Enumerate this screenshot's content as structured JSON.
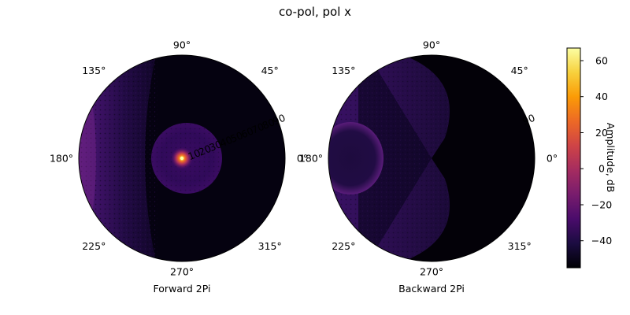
{
  "title": "co-pol, pol x",
  "chart_data": [
    {
      "type": "heatmap",
      "projection": "polar",
      "xlabel": "Forward 2Pi",
      "angle_ticks": [
        "0°",
        "45°",
        "90°",
        "135°",
        "180°",
        "225°",
        "270°",
        "315°"
      ],
      "radial_ticks": [
        "10",
        "20",
        "30",
        "40",
        "50",
        "60",
        "70",
        "80",
        "90"
      ],
      "radial_range": [
        0,
        90
      ],
      "peak": {
        "theta_deg": 0,
        "r": 0,
        "amplitude_db": 65
      },
      "background_db": -48,
      "features": [
        {
          "kind": "disc",
          "center_r": 0,
          "radius": 40,
          "amplitude_db": -35
        },
        {
          "kind": "edge-glow",
          "phi_deg": 180,
          "r": 90,
          "amplitude_db": -28
        }
      ],
      "grid": false
    },
    {
      "type": "heatmap",
      "projection": "polar",
      "xlabel": "Backward 2Pi",
      "angle_ticks": [
        "0°",
        "45°",
        "90°",
        "135°",
        "180°",
        "225°",
        "270°",
        "315°"
      ],
      "radial_ticks": [
        "90"
      ],
      "radial_range": [
        0,
        90
      ],
      "background_db": -50,
      "features": [
        {
          "kind": "disc",
          "phi_deg": 180,
          "r": 70,
          "amplitude_db": -30
        },
        {
          "kind": "butterfly",
          "amplitude_db": -38
        }
      ],
      "grid": false
    }
  ],
  "colorbar": {
    "label": "Amplitude, dB",
    "colormap": "inferno",
    "range": [
      -55,
      67
    ],
    "ticks": [
      -40,
      -20,
      0,
      20,
      40,
      60
    ],
    "tick_labels": [
      "−40",
      "−20",
      "0",
      "20",
      "40",
      "60"
    ]
  },
  "colors": {
    "inferno": [
      "#000004",
      "#1b0c41",
      "#4a0c6b",
      "#781c6d",
      "#a52c60",
      "#cf4446",
      "#ed6925",
      "#fb9b06",
      "#f7d13d",
      "#fcffa4"
    ]
  }
}
